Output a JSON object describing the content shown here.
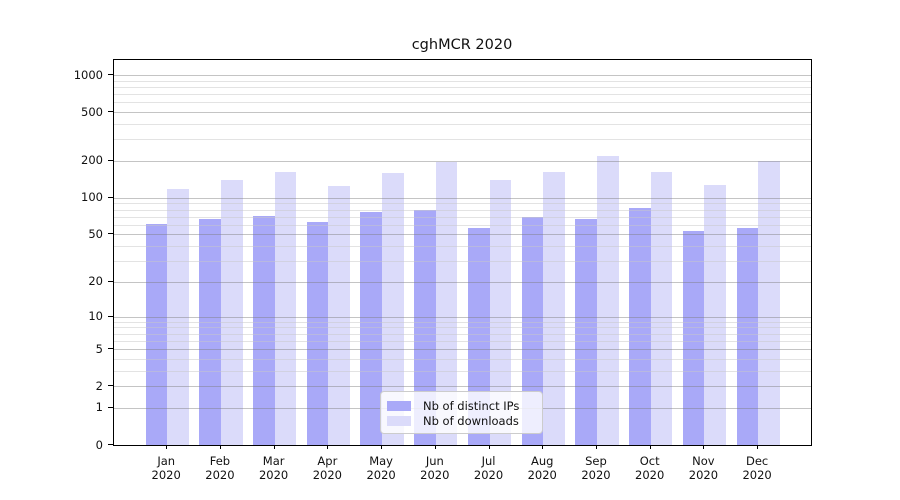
{
  "chart_data": {
    "type": "bar",
    "title": "cghMCR 2020",
    "xlabel": "",
    "ylabel": "",
    "categories": [
      "Jan",
      "Feb",
      "Mar",
      "Apr",
      "May",
      "Jun",
      "Jul",
      "Aug",
      "Sep",
      "Oct",
      "Nov",
      "Dec"
    ],
    "category_year": "2020",
    "series": [
      {
        "name": "Nb of distinct IPs",
        "color": "#a9a9f8",
        "values": [
          61,
          67,
          71,
          63,
          76,
          79,
          56,
          69,
          67,
          82,
          53,
          56
        ]
      },
      {
        "name": "Nb of downloads",
        "color": "#dbdbfa",
        "values": [
          118,
          141,
          163,
          124,
          160,
          195,
          140,
          164,
          218,
          163,
          128,
          200
        ]
      }
    ],
    "y_axis": {
      "scale": "log10(1+x)",
      "tick_values": [
        1000,
        500,
        200,
        100,
        50,
        20,
        10,
        5,
        2,
        1,
        0
      ],
      "tick_labels": [
        "1000",
        "500",
        "200",
        "100",
        "50",
        "20",
        "10",
        "5",
        "2",
        "1",
        "0"
      ],
      "minor_gridline_values": [
        3,
        4,
        6,
        7,
        8,
        9,
        30,
        40,
        60,
        70,
        80,
        90,
        300,
        400,
        600,
        700,
        800,
        900
      ],
      "ylim": [
        0,
        1000
      ]
    },
    "grid": true,
    "legend_position": "bottom-center-inside"
  }
}
